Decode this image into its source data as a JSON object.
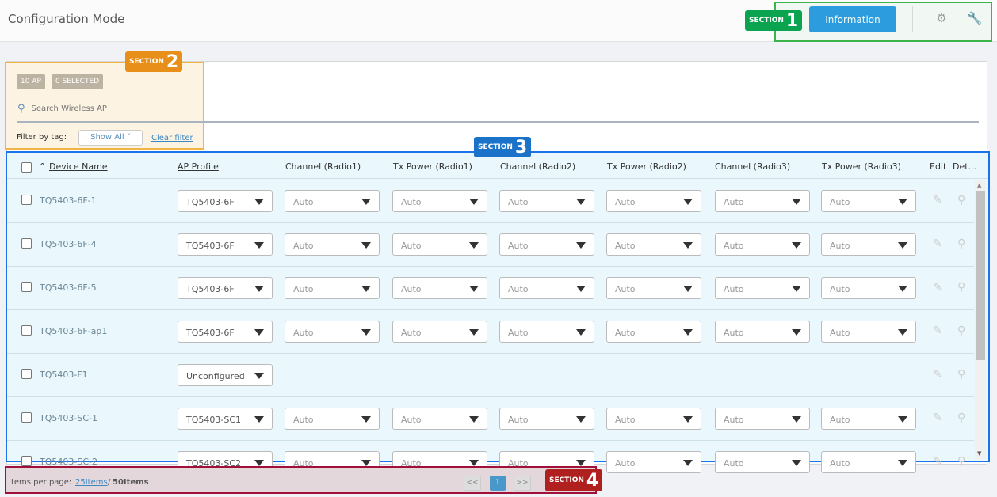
{
  "header": {
    "title": "Configuration Mode",
    "info_label": "Information",
    "icons": [
      "gears-icon",
      "wrench-icon"
    ]
  },
  "sections": {
    "s1": "1",
    "s2": "2",
    "s3": "3",
    "s4": "4",
    "label": "SECTION"
  },
  "toolbar": {
    "ap_count": "10 AP",
    "selected": "0 SELECTED",
    "search_placeholder": "Search Wireless AP",
    "filter_label": "Filter by tag:",
    "filter_value": "Show All",
    "clear_filter": "Clear filter"
  },
  "table": {
    "headers": [
      "Device Name",
      "AP Profile",
      "Channel (Radio1)",
      "Tx Power (Radio1)",
      "Channel (Radio2)",
      "Tx Power (Radio2)",
      "Channel (Radio3)",
      "Tx Power (Radio3)",
      "Edit",
      "Det..."
    ],
    "rows": [
      {
        "name": "TQ5403-6F-1",
        "profile": "TQ5403-6F",
        "radios": [
          "Auto",
          "Auto",
          "Auto",
          "Auto",
          "Auto",
          "Auto"
        ]
      },
      {
        "name": "TQ5403-6F-4",
        "profile": "TQ5403-6F",
        "radios": [
          "Auto",
          "Auto",
          "Auto",
          "Auto",
          "Auto",
          "Auto"
        ]
      },
      {
        "name": "TQ5403-6F-5",
        "profile": "TQ5403-6F",
        "radios": [
          "Auto",
          "Auto",
          "Auto",
          "Auto",
          "Auto",
          "Auto"
        ]
      },
      {
        "name": "TQ5403-6F-ap1",
        "profile": "TQ5403-6F",
        "radios": [
          "Auto",
          "Auto",
          "Auto",
          "Auto",
          "Auto",
          "Auto"
        ]
      },
      {
        "name": "TQ5403-F1",
        "profile": "Unconfigured",
        "radios": []
      },
      {
        "name": "TQ5403-SC-1",
        "profile": "TQ5403-SC1",
        "radios": [
          "Auto",
          "Auto",
          "Auto",
          "Auto",
          "Auto",
          "Auto"
        ]
      },
      {
        "name": "TQ5403-SC-2",
        "profile": "TQ5403-SC2",
        "radios": [
          "Auto",
          "Auto",
          "Auto",
          "Auto",
          "Auto",
          "Auto"
        ]
      }
    ]
  },
  "footer": {
    "items_label": "Items per page:",
    "per_page": "25Items",
    "sep": "/",
    "total": "50Items",
    "prev": "<<",
    "page": "1",
    "next": ">>"
  },
  "colors": {
    "accent": "#2d9be6",
    "section1": "#0aa34f",
    "section2": "#e88f1a",
    "section3": "#1a73c8",
    "section4": "#b0201e"
  }
}
